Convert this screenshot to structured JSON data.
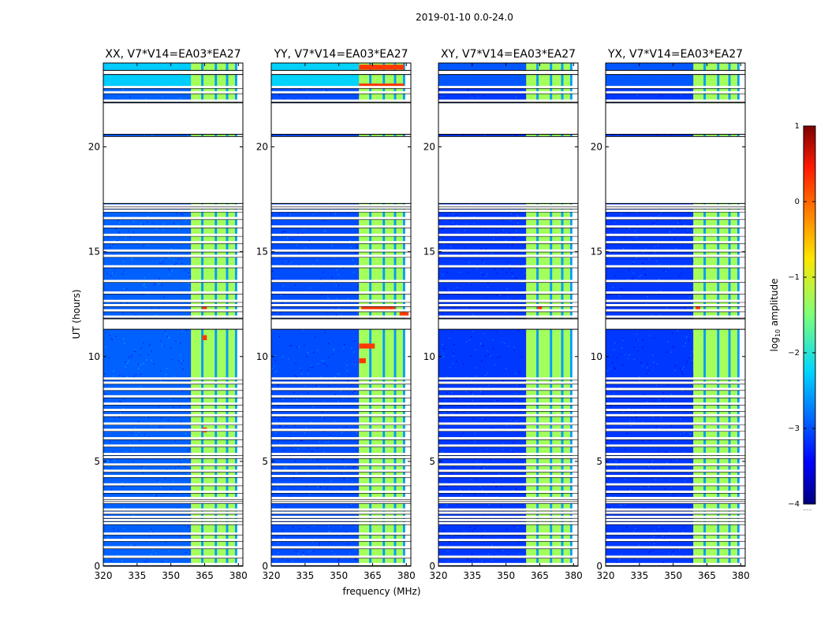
{
  "chart_data": {
    "type": "heatmap",
    "suptitle": "2019-01-10 0.0-24.0",
    "xlabel": "frequency (MHz)",
    "ylabel": "UT (hours)",
    "xlim": [
      320,
      382
    ],
    "ylim": [
      0,
      24
    ],
    "xticks": [
      320,
      335,
      350,
      365,
      380
    ],
    "yticks": [
      0,
      5,
      10,
      15,
      20
    ],
    "panels": [
      {
        "title": "XX, V7*V14=EA03*EA27",
        "polarization": "XX",
        "left_block_level": -2.9,
        "top_left_level": -2.2
      },
      {
        "title": "YY, V7*V14=EA03*EA27",
        "polarization": "YY",
        "left_block_level": -3.0,
        "top_left_level": -2.1
      },
      {
        "title": "XY, V7*V14=EA03*EA27",
        "polarization": "XY",
        "left_block_level": -3.1,
        "top_left_level": -2.9
      },
      {
        "title": "YX, V7*V14=EA03*EA27",
        "polarization": "YX",
        "left_block_level": -3.1,
        "top_left_level": -2.9
      }
    ],
    "band": {
      "freq_start": 359,
      "freq_end": 382,
      "channel_dividers": [
        364,
        370,
        375,
        379
      ],
      "level": -1.2,
      "edge_freq": 380,
      "data_end": 379.5
    },
    "blank_intervals_ut": [
      [
        11.3,
        11.8
      ],
      [
        17.3,
        20.5
      ],
      [
        20.6,
        22.1
      ],
      [
        23.45,
        23.65
      ]
    ],
    "rfi_lines_ut": [
      0.1,
      0.45,
      0.9,
      1.25,
      1.55,
      2.05,
      2.2,
      2.35,
      2.55,
      2.7,
      3.05,
      3.15,
      3.25,
      3.55,
      3.9,
      4.3,
      4.55,
      4.85,
      5.2,
      5.35,
      5.75,
      6.1,
      6.5,
      6.8,
      7.2,
      7.45,
      7.75,
      8.1,
      8.45,
      8.75,
      8.95,
      11.9,
      12.2,
      12.45,
      12.65,
      13.05,
      13.6,
      14.3,
      14.8,
      15.05,
      15.45,
      15.8,
      16.2,
      16.6,
      16.95,
      17.1,
      17.2,
      22.2,
      22.6,
      22.85
    ],
    "hot_spots": {
      "XX": [
        [
          12.35,
          364,
          366
        ],
        [
          10.9,
          364,
          366
        ],
        [
          6.5,
          364,
          366
        ]
      ],
      "YY": [
        [
          12.35,
          360,
          375
        ],
        [
          12.0,
          377,
          381
        ],
        [
          10.5,
          359,
          366
        ],
        [
          9.8,
          359,
          362
        ],
        [
          23.8,
          359,
          379
        ],
        [
          22.9,
          359,
          379
        ]
      ],
      "XY": [
        [
          12.35,
          364,
          366
        ]
      ],
      "YX": [
        [
          12.35,
          360,
          362
        ]
      ]
    },
    "colorbar": {
      "label": "log",
      "label_sub": "10",
      "label_rest": " amplitude",
      "range": [
        -4,
        1
      ],
      "ticks": [
        "1",
        "0",
        "−1",
        "−2",
        "−3",
        "−4"
      ],
      "tick_values": [
        1,
        0,
        -1,
        -2,
        -3,
        -4
      ]
    }
  }
}
